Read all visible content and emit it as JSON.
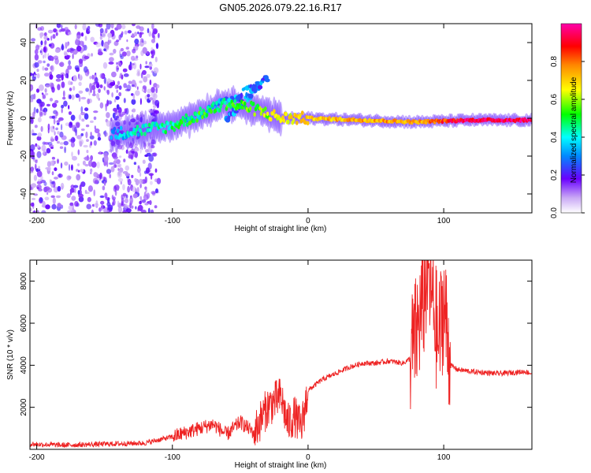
{
  "chart_data": [
    {
      "type": "heatmap",
      "title": "GN05.2026.079.22.16.R17",
      "xlabel": "Height of straight line (km)",
      "ylabel": "Frequency (Hz)",
      "xlim": [
        -205,
        165
      ],
      "ylim": [
        -50,
        50
      ],
      "xticks": [
        -200,
        -100,
        0,
        100
      ],
      "yticks": [
        -40,
        -20,
        0,
        20,
        40
      ],
      "colorbar": {
        "label": "Normalized spectral amplitude",
        "range": [
          0,
          1
        ],
        "ticks": [
          0.0,
          0.2,
          0.4,
          0.6,
          0.8
        ]
      },
      "ridge": [
        {
          "x": -140,
          "f": -8,
          "amp": 0.35
        },
        {
          "x": -120,
          "f": -6,
          "amp": 0.4
        },
        {
          "x": -100,
          "f": -4,
          "amp": 0.45
        },
        {
          "x": -80,
          "f": 2,
          "amp": 0.5
        },
        {
          "x": -60,
          "f": 8,
          "amp": 0.5
        },
        {
          "x": -40,
          "f": 5,
          "amp": 0.55
        },
        {
          "x": -20,
          "f": 0,
          "amp": 0.65
        },
        {
          "x": 0,
          "f": 0,
          "amp": 0.7
        },
        {
          "x": 40,
          "f": -1,
          "amp": 0.75
        },
        {
          "x": 80,
          "f": -2,
          "amp": 0.75
        },
        {
          "x": 120,
          "f": -1,
          "amp": 0.95
        },
        {
          "x": 160,
          "f": -1,
          "amp": 0.95
        }
      ]
    },
    {
      "type": "line",
      "xlabel": "Height of straight line (km)",
      "ylabel": "SNR (10 * v/v)",
      "xlim": [
        -205,
        165
      ],
      "ylim": [
        0,
        9000
      ],
      "xticks": [
        -200,
        -100,
        0,
        100
      ],
      "yticks": [
        2000,
        4000,
        6000,
        8000
      ],
      "series": [
        {
          "name": "SNR",
          "color": "#ee2222",
          "x": [
            -205,
            -180,
            -150,
            -120,
            -100,
            -90,
            -80,
            -70,
            -60,
            -50,
            -40,
            -30,
            -20,
            -15,
            -10,
            -5,
            0,
            10,
            20,
            30,
            40,
            50,
            60,
            70,
            75,
            80,
            85,
            88,
            92,
            96,
            100,
            105,
            110,
            120,
            140,
            160,
            165
          ],
          "y": [
            250,
            200,
            250,
            300,
            600,
            800,
            1000,
            1200,
            700,
            1300,
            800,
            2000,
            2500,
            1200,
            1600,
            1000,
            2800,
            3300,
            3600,
            3900,
            4100,
            4100,
            4200,
            4100,
            4300,
            5500,
            7000,
            8500,
            7000,
            5000,
            7000,
            4000,
            3800,
            3700,
            3600,
            3700,
            3600
          ]
        }
      ]
    }
  ]
}
